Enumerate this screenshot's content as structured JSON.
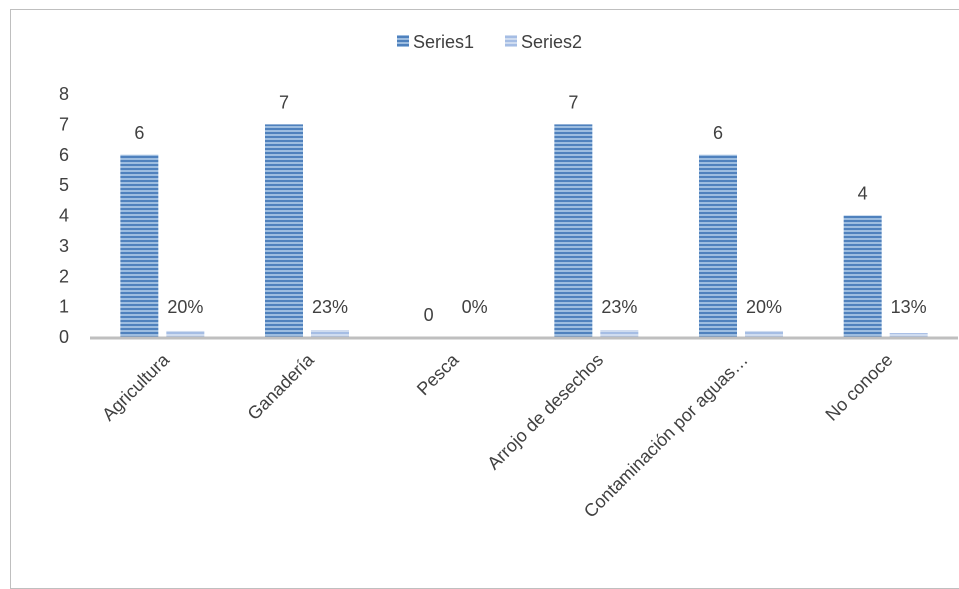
{
  "chart_data": {
    "type": "bar",
    "categories": [
      "Agricultura",
      "Ganadería",
      "Pesca",
      "Arrojo de desechos",
      "Contaminación por aguas…",
      "No conoce"
    ],
    "series": [
      {
        "name": "Series1",
        "values": [
          6,
          7,
          0,
          7,
          6,
          4
        ],
        "data_labels": [
          "6",
          "7",
          "0",
          "7",
          "6",
          "4"
        ],
        "color": "#4f81bd"
      },
      {
        "name": "Series2",
        "values": [
          0.2,
          0.23,
          0.0,
          0.23,
          0.2,
          0.13
        ],
        "data_labels": [
          "20%",
          "23%",
          "0%",
          "23%",
          "20%",
          "13%"
        ],
        "color": "#a5bde4"
      }
    ],
    "ylim": [
      0,
      8
    ],
    "yticks": [
      "0",
      "1",
      "2",
      "3",
      "4",
      "5",
      "6",
      "7",
      "8"
    ],
    "legend_position": "top",
    "grid": false,
    "axis_color": "#bfbfbf"
  }
}
